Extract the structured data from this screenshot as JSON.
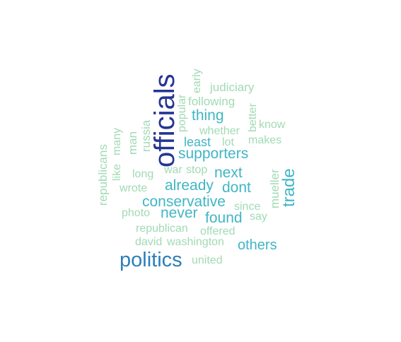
{
  "colors": {
    "navy": "#253494",
    "blue": "#2c7fb8",
    "teal": "#41b6c4",
    "mint": "#a1dab4"
  },
  "words": {
    "officials": "officials",
    "politics": "politics",
    "trade": "trade",
    "supporters": "supporters",
    "conservative": "conservative",
    "found": "found",
    "others": "others",
    "thing": "thing",
    "least": "least",
    "next": "next",
    "already": "already",
    "dont": "dont",
    "never": "never",
    "mueller": "mueller",
    "republicans": "republicans",
    "like": "like",
    "many": "many",
    "man": "man",
    "russia": "russia",
    "popular": "popular",
    "early": "early",
    "judiciary": "judiciary",
    "following": "following",
    "better": "better",
    "know": "know",
    "whether": "whether",
    "lot": "lot",
    "makes": "makes",
    "long": "long",
    "war": "war",
    "stop": "stop",
    "wrote": "wrote",
    "since": "since",
    "say": "say",
    "photo": "photo",
    "republican": "republican",
    "offered": "offered",
    "david": "david",
    "washington": "washington",
    "united": "united"
  }
}
